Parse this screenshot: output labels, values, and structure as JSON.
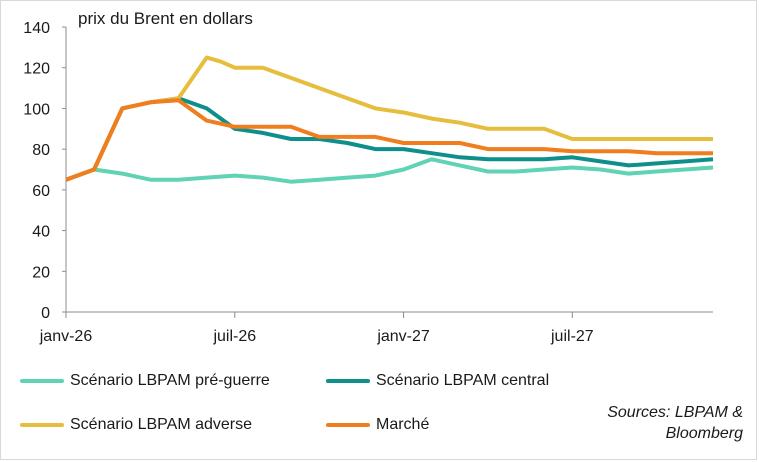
{
  "chart_data": {
    "type": "line",
    "title": "prix du Brent en dollars",
    "ylim": [
      0,
      140
    ],
    "yticks": [
      0,
      20,
      40,
      60,
      80,
      100,
      120,
      140
    ],
    "xlim": [
      0,
      23
    ],
    "xticks": [
      {
        "x": 0,
        "label": "janv-26"
      },
      {
        "x": 6,
        "label": "juil-26"
      },
      {
        "x": 12,
        "label": "janv-27"
      },
      {
        "x": 18,
        "label": "juil-27"
      }
    ],
    "legend_position": "bottom",
    "series": [
      {
        "name": "Scénario LBPAM pré-guerre",
        "color": "#5fd3b4",
        "x": [
          0,
          1,
          2,
          3,
          4,
          5,
          6,
          7,
          8,
          9,
          10,
          11,
          12,
          13,
          14,
          15,
          16,
          17,
          18,
          19,
          20,
          21,
          22,
          23
        ],
        "values": [
          65,
          70,
          68,
          65,
          65,
          66,
          67,
          66,
          64,
          65,
          66,
          67,
          70,
          75,
          72,
          69,
          69,
          70,
          71,
          70,
          68,
          69,
          70,
          71
        ]
      },
      {
        "name": "Scénario LBPAM central",
        "color": "#0f8f8c",
        "x": [
          0,
          1,
          2,
          3,
          4,
          5,
          6,
          7,
          8,
          9,
          10,
          11,
          12,
          13,
          14,
          15,
          16,
          17,
          18,
          19,
          20,
          21,
          22,
          23
        ],
        "values": [
          65,
          70,
          100,
          103,
          105,
          100,
          90,
          88,
          85,
          85,
          83,
          80,
          80,
          78,
          76,
          75,
          75,
          75,
          76,
          74,
          72,
          73,
          74,
          75
        ]
      },
      {
        "name": "Scénario LBPAM adverse",
        "color": "#e6bd3c",
        "x": [
          0,
          1,
          2,
          3,
          4,
          5,
          5.5,
          6,
          7,
          8,
          9,
          10,
          11,
          12,
          13,
          14,
          15,
          16,
          17,
          18,
          19,
          20,
          21,
          22,
          23
        ],
        "values": [
          65,
          70,
          100,
          103,
          105,
          125,
          123,
          120,
          120,
          115,
          110,
          105,
          100,
          98,
          95,
          93,
          90,
          90,
          90,
          85,
          85,
          85,
          85,
          85,
          85
        ]
      },
      {
        "name": "Marché",
        "color": "#f07d1e",
        "x": [
          0,
          1,
          2,
          3,
          4,
          5,
          6,
          7,
          8,
          9,
          10,
          11,
          12,
          13,
          14,
          15,
          16,
          17,
          18,
          19,
          20,
          21,
          22,
          23
        ],
        "values": [
          65,
          70,
          100,
          103,
          104,
          94,
          91,
          91,
          91,
          86,
          86,
          86,
          83,
          83,
          83,
          80,
          80,
          80,
          79,
          79,
          79,
          78,
          78,
          78
        ]
      }
    ],
    "source": [
      "Sources: LBPAM &",
      "Bloomberg"
    ]
  }
}
